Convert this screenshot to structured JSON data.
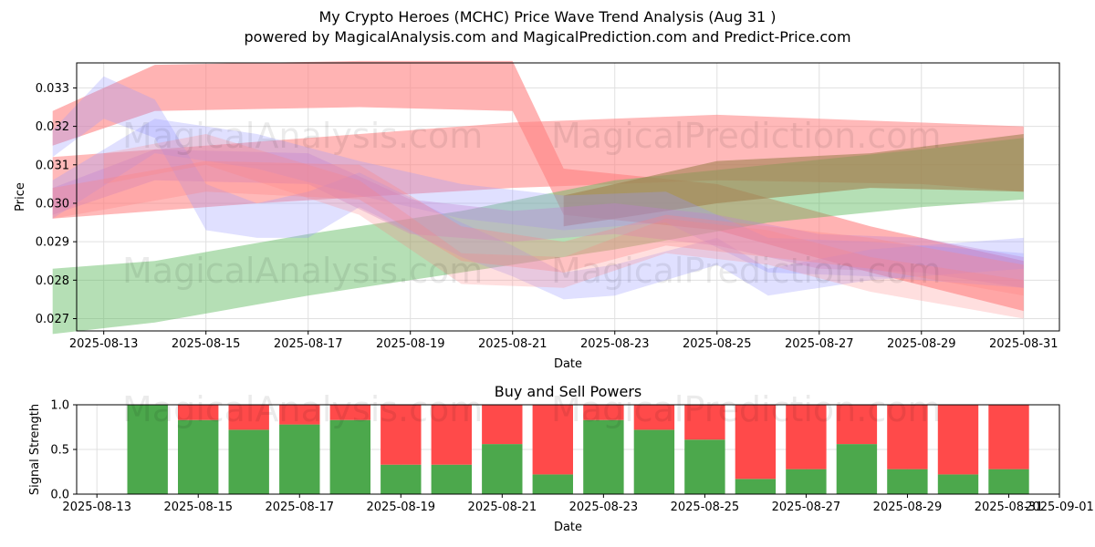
{
  "title": "My Crypto Heroes (MCHC) Price Wave Trend Analysis (Aug 31 )",
  "subtitle": "powered by MagicalAnalysis.com and MagicalPrediction.com and Predict-Price.com",
  "watermarks": [
    "MagicalAnalysis.com",
    "MagicalPrediction.com"
  ],
  "colors": {
    "buy": "#4ca84c",
    "sell": "#ff4a4a",
    "red_band": "#ff8080",
    "green_band": "#5cb85c",
    "blue_band": "#9999ff",
    "grid": "#e0e0e0"
  },
  "chart_data": [
    {
      "type": "area",
      "xlabel": "Date",
      "ylabel": "Price",
      "ylim": [
        0.02668,
        0.03365
      ],
      "xlim": [
        "2025-08-12",
        "2025-09-01"
      ],
      "x_ticks": [
        "2025-08-13",
        "2025-08-15",
        "2025-08-17",
        "2025-08-19",
        "2025-08-21",
        "2025-08-23",
        "2025-08-25",
        "2025-08-27",
        "2025-08-29",
        "2025-08-31"
      ],
      "y_ticks": [
        "0.027",
        "0.028",
        "0.029",
        "0.030",
        "0.031",
        "0.032",
        "0.033"
      ],
      "grid": true,
      "bands": [
        {
          "color": "red",
          "opacity": 0.6,
          "points": [
            [
              "2025-08-12",
              0.0324,
              0.0315
            ],
            [
              "2025-08-14",
              0.0336,
              0.0324
            ],
            [
              "2025-08-18",
              0.0337,
              0.0325
            ],
            [
              "2025-08-21",
              0.0337,
              0.0324
            ],
            [
              "2025-08-22",
              0.0309,
              0.0297
            ],
            [
              "2025-08-25",
              0.0305,
              0.0293
            ],
            [
              "2025-08-28",
              0.0294,
              0.0282
            ],
            [
              "2025-08-31",
              0.0285,
              0.0272
            ]
          ]
        },
        {
          "color": "red",
          "opacity": 0.55,
          "points": [
            [
              "2025-08-12",
              0.0312,
              0.0296
            ],
            [
              "2025-08-16",
              0.0316,
              0.03
            ],
            [
              "2025-08-21",
              0.0321,
              0.0304
            ],
            [
              "2025-08-25",
              0.0323,
              0.0306
            ],
            [
              "2025-08-29",
              0.0321,
              0.0305
            ],
            [
              "2025-08-31",
              0.032,
              0.0303
            ]
          ]
        },
        {
          "color": "green",
          "opacity": 0.45,
          "points": [
            [
              "2025-08-12",
              0.0283,
              0.0266
            ],
            [
              "2025-08-14",
              0.0285,
              0.0269
            ],
            [
              "2025-08-17",
              0.0292,
              0.0276
            ],
            [
              "2025-08-20",
              0.0298,
              0.0282
            ],
            [
              "2025-08-23",
              0.0306,
              0.0288
            ],
            [
              "2025-08-26",
              0.031,
              0.0295
            ],
            [
              "2025-08-29",
              0.0314,
              0.0299
            ],
            [
              "2025-08-31",
              0.0317,
              0.0301
            ]
          ]
        },
        {
          "color": "olive",
          "opacity": 0.6,
          "points": [
            [
              "2025-08-22",
              0.0302,
              0.0294
            ],
            [
              "2025-08-25",
              0.0311,
              0.03
            ],
            [
              "2025-08-28",
              0.0313,
              0.0304
            ],
            [
              "2025-08-31",
              0.0318,
              0.0303
            ]
          ]
        },
        {
          "color": "blue",
          "opacity": 0.3,
          "points": [
            [
              "2025-08-12",
              0.0319,
              0.0312
            ],
            [
              "2025-08-13",
              0.0333,
              0.0322
            ],
            [
              "2025-08-14",
              0.0327,
              0.0317
            ],
            [
              "2025-08-15",
              0.0305,
              0.0293
            ],
            [
              "2025-08-16",
              0.03,
              0.0291
            ],
            [
              "2025-08-17",
              0.0303,
              0.0291
            ],
            [
              "2025-08-18",
              0.0308,
              0.0299
            ],
            [
              "2025-08-20",
              0.0295,
              0.0286
            ],
            [
              "2025-08-21",
              0.0289,
              0.0281
            ],
            [
              "2025-08-22",
              0.0282,
              0.0275
            ],
            [
              "2025-08-23",
              0.0284,
              0.0276
            ],
            [
              "2025-08-25",
              0.0291,
              0.0284
            ],
            [
              "2025-08-26",
              0.0283,
              0.0276
            ],
            [
              "2025-08-28",
              0.0288,
              0.028
            ],
            [
              "2025-08-31",
              0.0291,
              0.0283
            ]
          ]
        },
        {
          "color": "blue",
          "opacity": 0.3,
          "points": [
            [
              "2025-08-12",
              0.0306,
              0.0296
            ],
            [
              "2025-08-14",
              0.0322,
              0.0313
            ],
            [
              "2025-08-16",
              0.0318,
              0.0309
            ],
            [
              "2025-08-18",
              0.0311,
              0.0302
            ],
            [
              "2025-08-20",
              0.0305,
              0.0296
            ],
            [
              "2025-08-22",
              0.0302,
              0.0293
            ],
            [
              "2025-08-24",
              0.0303,
              0.0295
            ],
            [
              "2025-08-26",
              0.0291,
              0.0282
            ],
            [
              "2025-08-28",
              0.029,
              0.0281
            ],
            [
              "2025-08-31",
              0.0287,
              0.0278
            ]
          ]
        },
        {
          "color": "purple",
          "opacity": 0.35,
          "points": [
            [
              "2025-08-12",
              0.0304,
              0.0297
            ],
            [
              "2025-08-14",
              0.0314,
              0.0306
            ],
            [
              "2025-08-17",
              0.0313,
              0.0305
            ],
            [
              "2025-08-19",
              0.0301,
              0.0292
            ],
            [
              "2025-08-21",
              0.0298,
              0.029
            ],
            [
              "2025-08-23",
              0.03,
              0.0292
            ],
            [
              "2025-08-25",
              0.0297,
              0.0289
            ],
            [
              "2025-08-27",
              0.0292,
              0.0283
            ],
            [
              "2025-08-29",
              0.0291,
              0.0282
            ],
            [
              "2025-08-31",
              0.0286,
              0.0278
            ]
          ]
        },
        {
          "color": "red",
          "opacity": 0.3,
          "points": [
            [
              "2025-08-12",
              0.0304,
              0.0296
            ],
            [
              "2025-08-15",
              0.0311,
              0.0303
            ],
            [
              "2025-08-18",
              0.031,
              0.0301
            ],
            [
              "2025-08-20",
              0.0294,
              0.0285
            ],
            [
              "2025-08-22",
              0.029,
              0.0282
            ],
            [
              "2025-08-24",
              0.0297,
              0.0289
            ],
            [
              "2025-08-26",
              0.0294,
              0.0286
            ],
            [
              "2025-08-28",
              0.0291,
              0.0283
            ],
            [
              "2025-08-31",
              0.0284,
              0.0276
            ]
          ]
        },
        {
          "color": "red",
          "opacity": 0.25,
          "points": [
            [
              "2025-08-13",
              0.0313,
              0.0305
            ],
            [
              "2025-08-15",
              0.0318,
              0.031
            ],
            [
              "2025-08-18",
              0.0306,
              0.0297
            ],
            [
              "2025-08-20",
              0.0287,
              0.0279
            ],
            [
              "2025-08-22",
              0.0286,
              0.0278
            ],
            [
              "2025-08-24",
              0.0296,
              0.0287
            ],
            [
              "2025-08-26",
              0.0293,
              0.0284
            ],
            [
              "2025-08-28",
              0.0286,
              0.0277
            ],
            [
              "2025-08-31",
              0.028,
              0.027
            ]
          ]
        }
      ]
    },
    {
      "type": "bar",
      "title": "Buy and Sell Powers",
      "xlabel": "Date",
      "ylabel": "Signal Strength",
      "ylim": [
        0,
        1
      ],
      "xlim": [
        "2025-08-12.6",
        "2025-09-01"
      ],
      "y_ticks": [
        "0.0",
        "0.5",
        "1.0"
      ],
      "x_ticks": [
        "2025-08-13",
        "2025-08-15",
        "2025-08-17",
        "2025-08-19",
        "2025-08-21",
        "2025-08-23",
        "2025-08-25",
        "2025-08-27",
        "2025-08-29",
        "2025-08-31",
        "2025-09-01"
      ],
      "categories": [
        "2025-08-14",
        "2025-08-15",
        "2025-08-16",
        "2025-08-17",
        "2025-08-18",
        "2025-08-19",
        "2025-08-20",
        "2025-08-21",
        "2025-08-22",
        "2025-08-23",
        "2025-08-24",
        "2025-08-25",
        "2025-08-26",
        "2025-08-27",
        "2025-08-28",
        "2025-08-29",
        "2025-08-30",
        "2025-08-31"
      ],
      "series": [
        {
          "name": "Buy",
          "values": [
            1.0,
            0.83,
            0.72,
            0.78,
            0.83,
            0.33,
            0.33,
            0.56,
            0.22,
            0.83,
            0.72,
            0.61,
            0.17,
            0.28,
            0.56,
            0.28,
            0.22,
            0.28
          ]
        },
        {
          "name": "Sell",
          "values": [
            0.0,
            0.17,
            0.28,
            0.22,
            0.17,
            0.67,
            0.67,
            0.44,
            0.78,
            0.17,
            0.28,
            0.39,
            0.83,
            0.72,
            0.44,
            0.72,
            0.78,
            0.72
          ]
        }
      ]
    }
  ]
}
